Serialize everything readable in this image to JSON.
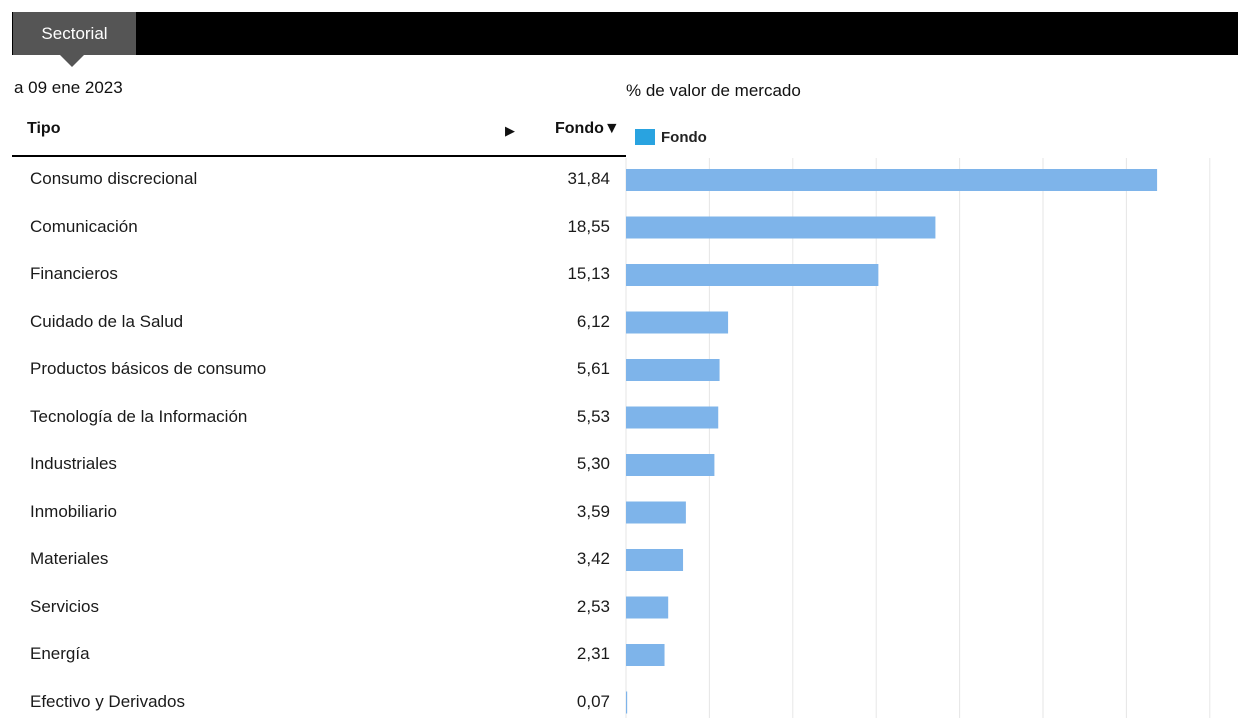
{
  "tab": {
    "label": "Sectorial"
  },
  "as_of": "a 09 ene 2023",
  "table": {
    "col_type": "Tipo",
    "col_value": "Fondo",
    "sort_indicator": "▼",
    "expand_indicator": "▶"
  },
  "colors": {
    "bar": "#7eb4ea",
    "legend_swatch": "#29a3e0",
    "grid": "#e6e6e6",
    "tab_active": "#555555",
    "topbar": "#000000"
  },
  "chart_data": {
    "type": "bar",
    "orientation": "horizontal",
    "title": "% de valor de mercado",
    "legend": "top-left",
    "grid": true,
    "xlim": [
      0,
      35
    ],
    "series": [
      {
        "name": "Fondo",
        "color": "#7eb4ea"
      }
    ],
    "rows": [
      {
        "label": "Consumo discrecional",
        "value": 31.84,
        "display": "31,84"
      },
      {
        "label": "Comunicación",
        "value": 18.55,
        "display": "18,55"
      },
      {
        "label": "Financieros",
        "value": 15.13,
        "display": "15,13"
      },
      {
        "label": "Cuidado de la Salud",
        "value": 6.12,
        "display": "6,12"
      },
      {
        "label": "Productos básicos de consumo",
        "value": 5.61,
        "display": "5,61"
      },
      {
        "label": "Tecnología de la Información",
        "value": 5.53,
        "display": "5,53"
      },
      {
        "label": "Industriales",
        "value": 5.3,
        "display": "5,30"
      },
      {
        "label": "Inmobiliario",
        "value": 3.59,
        "display": "3,59"
      },
      {
        "label": "Materiales",
        "value": 3.42,
        "display": "3,42"
      },
      {
        "label": "Servicios",
        "value": 2.53,
        "display": "2,53"
      },
      {
        "label": "Energía",
        "value": 2.31,
        "display": "2,31"
      },
      {
        "label": "Efectivo y Derivados",
        "value": 0.07,
        "display": "0,07"
      }
    ]
  }
}
